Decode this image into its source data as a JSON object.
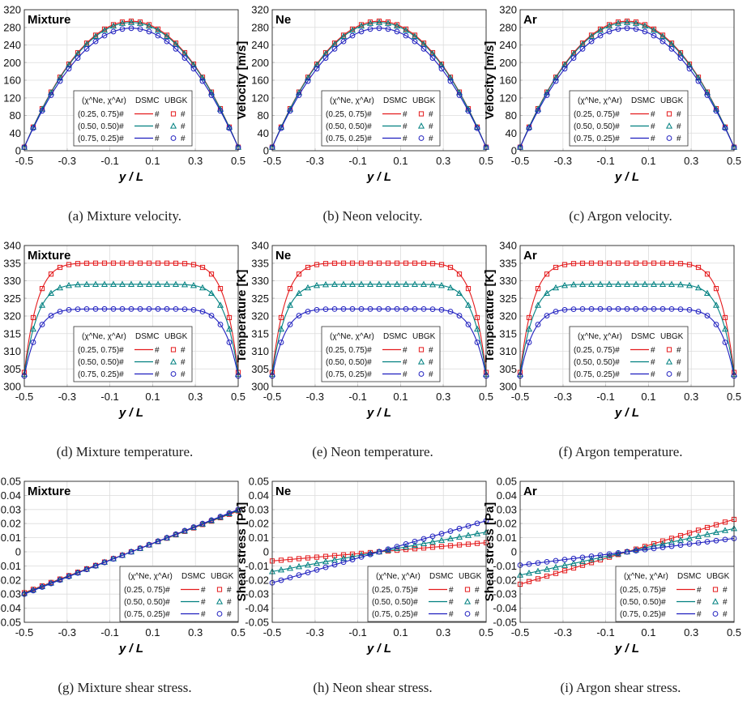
{
  "legend": {
    "header_pair": "(χ^Ne, χ^Ar)",
    "col_dsmc": "DSMC",
    "col_ubgk": "UBGK",
    "marker_hash": "#",
    "rows": [
      {
        "label": "(0.25, 0.75)#"
      },
      {
        "label": "(0.50, 0.50)#"
      },
      {
        "label": "(0.75, 0.25)#"
      }
    ]
  },
  "colors": {
    "series_025": "#e41a1c",
    "series_050": "#008080",
    "series_075": "#1f1fbf"
  },
  "chart_data": [
    {
      "type": "line",
      "caption": "(a) Mixture velocity.",
      "tag": "Mixture",
      "xlabel": "y / L",
      "ylabel": "Velocity [m/s]",
      "xlim": [
        -0.5,
        0.5
      ],
      "ylim": [
        0,
        320
      ],
      "xticks": [
        "-0.5",
        "-0.3",
        "-0.1",
        "0.1",
        "0.3",
        "0.5"
      ],
      "yticks": [
        "0",
        "40",
        "80",
        "120",
        "160",
        "200",
        "240",
        "280",
        "320"
      ],
      "grid": true,
      "legend_position": "bottom-center",
      "profile": "parabola",
      "series": [
        {
          "edge": 8,
          "peak": 294,
          "marker": "square"
        },
        {
          "edge": 8,
          "peak": 291,
          "marker": "triangle"
        },
        {
          "edge": 8,
          "peak": 278,
          "marker": "circle"
        }
      ]
    },
    {
      "type": "line",
      "caption": "(b) Neon velocity.",
      "tag": "Ne",
      "xlabel": "y / L",
      "ylabel": "Velocity [m/s]",
      "xlim": [
        -0.5,
        0.5
      ],
      "ylim": [
        0,
        320
      ],
      "xticks": [
        "-0.5",
        "-0.3",
        "-0.1",
        "0.1",
        "0.3",
        "0.5"
      ],
      "yticks": [
        "0",
        "40",
        "80",
        "120",
        "160",
        "200",
        "240",
        "280",
        "320"
      ],
      "grid": true,
      "legend_position": "bottom-center",
      "profile": "parabola",
      "series": [
        {
          "edge": 8,
          "peak": 294,
          "marker": "square"
        },
        {
          "edge": 8,
          "peak": 291,
          "marker": "triangle"
        },
        {
          "edge": 8,
          "peak": 278,
          "marker": "circle"
        }
      ]
    },
    {
      "type": "line",
      "caption": "(c) Argon velocity.",
      "tag": "Ar",
      "xlabel": "y / L",
      "ylabel": "Velocity [m/s]",
      "xlim": [
        -0.5,
        0.5
      ],
      "ylim": [
        0,
        320
      ],
      "xticks": [
        "-0.5",
        "-0.3",
        "-0.1",
        "0.1",
        "0.3",
        "0.5"
      ],
      "yticks": [
        "0",
        "40",
        "80",
        "120",
        "160",
        "200",
        "240",
        "280",
        "320"
      ],
      "grid": true,
      "legend_position": "bottom-center",
      "profile": "parabola",
      "series": [
        {
          "edge": 8,
          "peak": 294,
          "marker": "square"
        },
        {
          "edge": 8,
          "peak": 291,
          "marker": "triangle"
        },
        {
          "edge": 8,
          "peak": 278,
          "marker": "circle"
        }
      ]
    },
    {
      "type": "line",
      "caption": "(d) Mixture temperature.",
      "tag": "Mixture",
      "xlabel": "y / L",
      "ylabel": "Temperature [K]",
      "xlim": [
        -0.5,
        0.5
      ],
      "ylim": [
        300,
        340
      ],
      "xticks": [
        "-0.5",
        "-0.3",
        "-0.1",
        "0.1",
        "0.3",
        "0.5"
      ],
      "yticks": [
        "300",
        "305",
        "310",
        "315",
        "320",
        "325",
        "330",
        "335",
        "340"
      ],
      "grid": true,
      "legend_position": "bottom-center",
      "profile": "plateau",
      "series": [
        {
          "edge": 304,
          "peak": 335,
          "marker": "square"
        },
        {
          "edge": 303.5,
          "peak": 329,
          "marker": "triangle"
        },
        {
          "edge": 303,
          "peak": 322,
          "marker": "circle"
        }
      ]
    },
    {
      "type": "line",
      "caption": "(e) Neon temperature.",
      "tag": "Ne",
      "xlabel": "y / L",
      "ylabel": "Temperature [K]",
      "xlim": [
        -0.5,
        0.5
      ],
      "ylim": [
        300,
        340
      ],
      "xticks": [
        "-0.5",
        "-0.3",
        "-0.1",
        "0.1",
        "0.3",
        "0.5"
      ],
      "yticks": [
        "300",
        "305",
        "310",
        "315",
        "320",
        "325",
        "330",
        "335",
        "340"
      ],
      "grid": true,
      "legend_position": "bottom-center",
      "profile": "plateau",
      "series": [
        {
          "edge": 304,
          "peak": 335,
          "marker": "square"
        },
        {
          "edge": 303.5,
          "peak": 329,
          "marker": "triangle"
        },
        {
          "edge": 303,
          "peak": 322,
          "marker": "circle"
        }
      ]
    },
    {
      "type": "line",
      "caption": "(f) Argon temperature.",
      "tag": "Ar",
      "xlabel": "y / L",
      "ylabel": "Temperature [K]",
      "xlim": [
        -0.5,
        0.5
      ],
      "ylim": [
        300,
        340
      ],
      "xticks": [
        "-0.5",
        "-0.3",
        "-0.1",
        "0.1",
        "0.3",
        "0.5"
      ],
      "yticks": [
        "300",
        "305",
        "310",
        "315",
        "320",
        "325",
        "330",
        "335",
        "340"
      ],
      "grid": true,
      "legend_position": "bottom-center",
      "profile": "plateau",
      "series": [
        {
          "edge": 304,
          "peak": 335,
          "marker": "square"
        },
        {
          "edge": 303.5,
          "peak": 329,
          "marker": "triangle"
        },
        {
          "edge": 303,
          "peak": 322,
          "marker": "circle"
        }
      ]
    },
    {
      "type": "line",
      "caption": "(g) Mixture shear stress.",
      "tag": "Mixture",
      "xlabel": "y / L",
      "ylabel": "Shear stress [Pa]",
      "xlim": [
        -0.5,
        0.5
      ],
      "ylim": [
        -0.05,
        0.05
      ],
      "xticks": [
        "-0.5",
        "-0.3",
        "-0.1",
        "0.1",
        "0.3",
        "0.5"
      ],
      "yticks": [
        "-0.05",
        "-0.04",
        "-0.03",
        "-0.02",
        "-0.01",
        "0",
        "0.01",
        "0.02",
        "0.03",
        "0.04",
        "0.05"
      ],
      "grid": true,
      "legend_position": "bottom-right",
      "profile": "linear",
      "series": [
        {
          "slope": 0.058,
          "marker": "square"
        },
        {
          "slope": 0.059,
          "marker": "triangle"
        },
        {
          "slope": 0.06,
          "marker": "circle"
        }
      ]
    },
    {
      "type": "line",
      "caption": "(h) Neon shear stress.",
      "tag": "Ne",
      "xlabel": "y / L",
      "ylabel": "Shear stress [Pa]",
      "xlim": [
        -0.5,
        0.5
      ],
      "ylim": [
        -0.05,
        0.05
      ],
      "xticks": [
        "-0.5",
        "-0.3",
        "-0.1",
        "0.1",
        "0.3",
        "0.5"
      ],
      "yticks": [
        "-0.05",
        "-0.04",
        "-0.03",
        "-0.02",
        "-0.01",
        "0",
        "0.01",
        "0.02",
        "0.03",
        "0.04",
        "0.05"
      ],
      "grid": true,
      "legend_position": "bottom-right",
      "profile": "linear",
      "series": [
        {
          "slope": 0.013,
          "marker": "square"
        },
        {
          "slope": 0.028,
          "marker": "triangle"
        },
        {
          "slope": 0.044,
          "marker": "circle"
        }
      ]
    },
    {
      "type": "line",
      "caption": "(i) Argon shear stress.",
      "tag": "Ar",
      "xlabel": "y / L",
      "ylabel": "Shear stress [Pa]",
      "xlim": [
        -0.5,
        0.5
      ],
      "ylim": [
        -0.05,
        0.05
      ],
      "xticks": [
        "-0.5",
        "-0.3",
        "-0.1",
        "0.1",
        "0.3",
        "0.5"
      ],
      "yticks": [
        "-0.05",
        "-0.04",
        "-0.03",
        "-0.02",
        "-0.01",
        "0",
        "0.01",
        "0.02",
        "0.03",
        "0.04",
        "0.05"
      ],
      "grid": true,
      "legend_position": "bottom-right",
      "profile": "linear",
      "series": [
        {
          "slope": 0.046,
          "marker": "square"
        },
        {
          "slope": 0.033,
          "marker": "triangle"
        },
        {
          "slope": 0.019,
          "marker": "circle"
        }
      ]
    }
  ]
}
